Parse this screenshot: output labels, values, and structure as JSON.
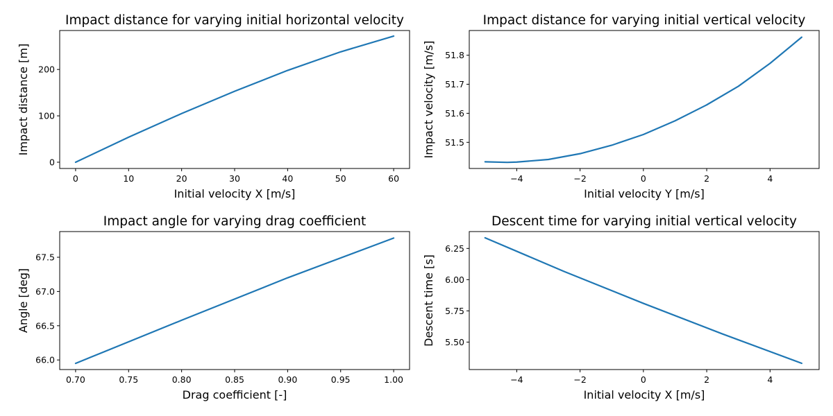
{
  "chart_data": [
    {
      "type": "line",
      "title": "Impact distance for varying initial horizontal velocity",
      "xlabel": "Initial velocity X [m/s]",
      "ylabel": "Impact distance [m]",
      "xlim": [
        -3,
        63
      ],
      "ylim": [
        -13.5,
        284
      ],
      "xticks": [
        0,
        10,
        20,
        30,
        40,
        50,
        60
      ],
      "xtick_labels": [
        "0",
        "10",
        "20",
        "30",
        "40",
        "50",
        "60"
      ],
      "yticks": [
        0,
        100,
        200
      ],
      "ytick_labels": [
        "0",
        "100",
        "200"
      ],
      "grid": false,
      "series": [
        {
          "x": [
            0,
            10,
            20,
            30,
            40,
            50,
            60
          ],
          "y": [
            0,
            54,
            105,
            153,
            198,
            238,
            272
          ]
        }
      ]
    },
    {
      "type": "line",
      "title": "Impact distance for varying initial vertical velocity",
      "xlabel": "Initial velocity Y [m/s]",
      "ylabel": "Impact velocity [m/s]",
      "xlim": [
        -5.5,
        5.55
      ],
      "ylim": [
        51.41,
        51.885
      ],
      "xticks": [
        -4,
        -2,
        0,
        2,
        4
      ],
      "xtick_labels": [
        "−4",
        "−2",
        "0",
        "2",
        "4"
      ],
      "yticks": [
        51.5,
        51.6,
        51.7,
        51.8
      ],
      "ytick_labels": [
        "51.5",
        "51.6",
        "51.7",
        "51.8"
      ],
      "grid": false,
      "series": [
        {
          "x": [
            -5,
            -4.3,
            -4,
            -3,
            -2,
            -1,
            0,
            1,
            2,
            3,
            4,
            5
          ],
          "y": [
            51.433,
            51.431,
            51.432,
            51.441,
            51.461,
            51.49,
            51.527,
            51.574,
            51.629,
            51.693,
            51.772,
            51.862
          ]
        }
      ]
    },
    {
      "type": "line",
      "title": "Impact angle for varying drag coefficient",
      "xlabel": "Drag coefficient [-]",
      "ylabel": "Angle [deg]",
      "xlim": [
        0.685,
        1.015
      ],
      "ylim": [
        65.86,
        67.875
      ],
      "xticks": [
        0.7,
        0.75,
        0.8,
        0.85,
        0.9,
        0.95,
        1.0
      ],
      "xtick_labels": [
        "0.70",
        "0.75",
        "0.80",
        "0.85",
        "0.90",
        "0.95",
        "1.00"
      ],
      "yticks": [
        66.0,
        66.5,
        67.0,
        67.5
      ],
      "ytick_labels": [
        "66.0",
        "66.5",
        "67.0",
        "67.5"
      ],
      "grid": false,
      "series": [
        {
          "x": [
            0.7,
            0.8,
            0.9,
            1.0
          ],
          "y": [
            65.95,
            66.58,
            67.2,
            67.78
          ]
        }
      ]
    },
    {
      "type": "line",
      "title": "Descent time for varying initial vertical velocity",
      "xlabel": "Initial velocity X [m/s]",
      "ylabel": "Descent time [s]",
      "xlim": [
        -5.5,
        5.55
      ],
      "ylim": [
        5.28,
        6.385
      ],
      "xticks": [
        -4,
        -2,
        0,
        2,
        4
      ],
      "xtick_labels": [
        "−4",
        "−2",
        "0",
        "2",
        "4"
      ],
      "yticks": [
        5.5,
        5.75,
        6.0,
        6.25
      ],
      "ytick_labels": [
        "5.50",
        "5.75",
        "6.00",
        "6.25"
      ],
      "grid": false,
      "series": [
        {
          "x": [
            -5,
            -2.5,
            0,
            2.5,
            5
          ],
          "y": [
            6.335,
            6.065,
            5.81,
            5.565,
            5.33
          ]
        }
      ]
    }
  ]
}
